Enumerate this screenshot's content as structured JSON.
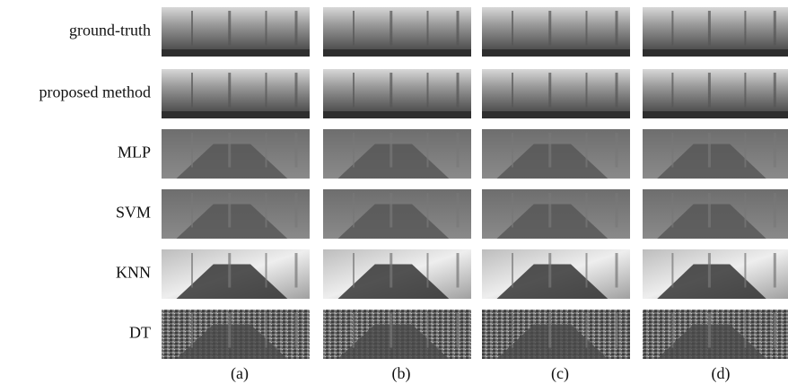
{
  "rows": [
    "ground-truth",
    "proposed method",
    "MLP",
    "SVM",
    "KNN",
    "DT"
  ],
  "columns": [
    "(a)",
    "(b)",
    "(c)",
    "(d)"
  ]
}
